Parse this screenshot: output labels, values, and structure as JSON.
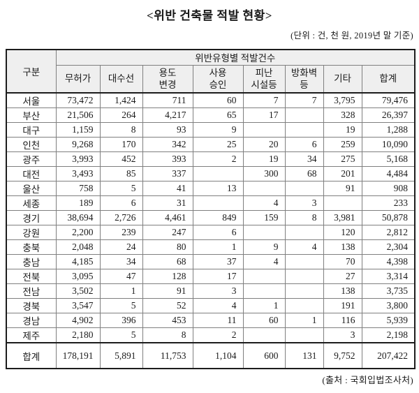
{
  "title": "<위반 건축물 적발 현황>",
  "unit_note": "(단위 : 건, 천 원, 2019년 말 기준)",
  "source_note": "(출처 : 국회입법조사처)",
  "table": {
    "corner_header": "구분",
    "group_header": "위반유형별 적발건수",
    "columns": [
      "무허가",
      "대수선",
      "용도\n변경",
      "사용\n승인",
      "피난\n시설등",
      "방화벽\n등",
      "기타",
      "합계"
    ],
    "rows": [
      {
        "region": "서울",
        "values": [
          "73,472",
          "1,424",
          "711",
          "60",
          "7",
          "7",
          "3,795",
          "79,476"
        ]
      },
      {
        "region": "부산",
        "values": [
          "21,506",
          "264",
          "4,217",
          "65",
          "17",
          "",
          "328",
          "26,397"
        ]
      },
      {
        "region": "대구",
        "values": [
          "1,159",
          "8",
          "93",
          "9",
          "",
          "",
          "19",
          "1,288"
        ]
      },
      {
        "region": "인천",
        "values": [
          "9,268",
          "170",
          "342",
          "25",
          "20",
          "6",
          "259",
          "10,090"
        ]
      },
      {
        "region": "광주",
        "values": [
          "3,993",
          "452",
          "393",
          "2",
          "19",
          "34",
          "275",
          "5,168"
        ]
      },
      {
        "region": "대전",
        "values": [
          "3,493",
          "85",
          "337",
          "",
          "300",
          "68",
          "201",
          "4,484"
        ]
      },
      {
        "region": "울산",
        "values": [
          "758",
          "5",
          "41",
          "13",
          "",
          "",
          "91",
          "908"
        ]
      },
      {
        "region": "세종",
        "values": [
          "189",
          "6",
          "31",
          "",
          "4",
          "3",
          "",
          "233"
        ]
      },
      {
        "region": "경기",
        "values": [
          "38,694",
          "2,726",
          "4,461",
          "849",
          "159",
          "8",
          "3,981",
          "50,878"
        ]
      },
      {
        "region": "강원",
        "values": [
          "2,200",
          "239",
          "247",
          "6",
          "",
          "",
          "120",
          "2,812"
        ]
      },
      {
        "region": "충북",
        "values": [
          "2,048",
          "24",
          "80",
          "1",
          "9",
          "4",
          "138",
          "2,304"
        ]
      },
      {
        "region": "충남",
        "values": [
          "4,185",
          "34",
          "68",
          "37",
          "4",
          "",
          "70",
          "4,398"
        ]
      },
      {
        "region": "전북",
        "values": [
          "3,095",
          "47",
          "128",
          "17",
          "",
          "",
          "27",
          "3,314"
        ]
      },
      {
        "region": "전남",
        "values": [
          "3,502",
          "1",
          "91",
          "3",
          "",
          "",
          "138",
          "3,735"
        ]
      },
      {
        "region": "경북",
        "values": [
          "3,547",
          "5",
          "52",
          "4",
          "1",
          "",
          "191",
          "3,800"
        ]
      },
      {
        "region": "경남",
        "values": [
          "4,902",
          "396",
          "453",
          "11",
          "60",
          "1",
          "116",
          "5,939"
        ]
      },
      {
        "region": "제주",
        "values": [
          "2,180",
          "5",
          "8",
          "2",
          "",
          "",
          "3",
          "2,198"
        ]
      }
    ],
    "totals": {
      "region": "합계",
      "values": [
        "178,191",
        "5,891",
        "11,753",
        "1,104",
        "600",
        "131",
        "9,752",
        "207,422"
      ]
    }
  }
}
